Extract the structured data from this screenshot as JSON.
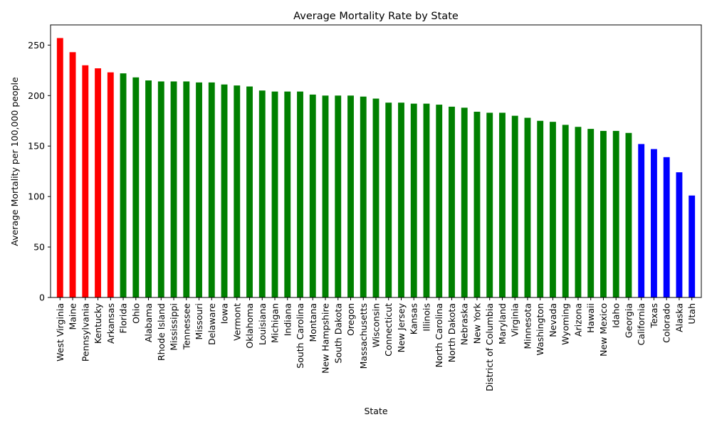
{
  "chart_data": {
    "type": "bar",
    "title": "Average Mortality Rate by State",
    "xlabel": "State",
    "ylabel": "Average Mortality per 100,000 people",
    "ylim": [
      0,
      270
    ],
    "yticks": [
      0,
      50,
      100,
      150,
      200,
      250
    ],
    "grid": false,
    "legend": "none",
    "colors": {
      "high": "#ff0000",
      "mid": "#008000",
      "low": "#0000ff"
    },
    "categories": [
      "West Virginia",
      "Maine",
      "Pennsylvania",
      "Kentucky",
      "Arkansas",
      "Florida",
      "Ohio",
      "Alabama",
      "Rhode Island",
      "Mississippi",
      "Tennessee",
      "Missouri",
      "Delaware",
      "Iowa",
      "Vermont",
      "Oklahoma",
      "Louisiana",
      "Michigan",
      "Indiana",
      "South Carolina",
      "Montana",
      "New Hampshire",
      "South Dakota",
      "Oregon",
      "Massachusetts",
      "Wisconsin",
      "Connecticut",
      "New Jersey",
      "Kansas",
      "Illinois",
      "North Carolina",
      "North Dakota",
      "Nebraska",
      "New York",
      "District of Columbia",
      "Maryland",
      "Virginia",
      "Minnesota",
      "Washington",
      "Nevada",
      "Wyoming",
      "Arizona",
      "Hawaii",
      "New Mexico",
      "Idaho",
      "Georgia",
      "California",
      "Texas",
      "Colorado",
      "Alaska",
      "Utah"
    ],
    "values": [
      257,
      243,
      230,
      227,
      223,
      222,
      218,
      215,
      214,
      214,
      214,
      213,
      213,
      211,
      210,
      209,
      205,
      204,
      204,
      204,
      201,
      200,
      200,
      200,
      199,
      197,
      193,
      193,
      192,
      192,
      191,
      189,
      188,
      184,
      183,
      183,
      180,
      178,
      175,
      174,
      171,
      169,
      167,
      165,
      165,
      163,
      152,
      147,
      139,
      124,
      101
    ],
    "bar_colors": [
      "high",
      "high",
      "high",
      "high",
      "high",
      "mid",
      "mid",
      "mid",
      "mid",
      "mid",
      "mid",
      "mid",
      "mid",
      "mid",
      "mid",
      "mid",
      "mid",
      "mid",
      "mid",
      "mid",
      "mid",
      "mid",
      "mid",
      "mid",
      "mid",
      "mid",
      "mid",
      "mid",
      "mid",
      "mid",
      "mid",
      "mid",
      "mid",
      "mid",
      "mid",
      "mid",
      "mid",
      "mid",
      "mid",
      "mid",
      "mid",
      "mid",
      "mid",
      "mid",
      "mid",
      "mid",
      "low",
      "low",
      "low",
      "low",
      "low"
    ]
  }
}
